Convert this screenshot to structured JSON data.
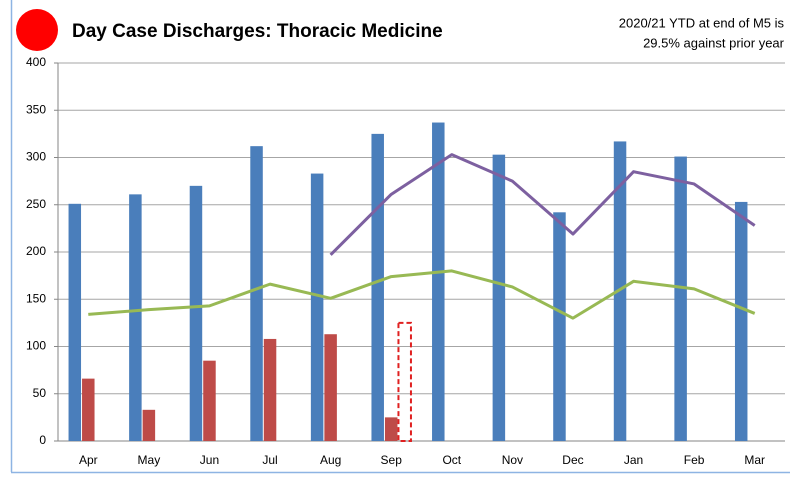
{
  "chart_data": {
    "type": "bar",
    "title": "Day Case Discharges: Thoracic Medicine",
    "annotation": [
      "2020/21 YTD at end of M5 is",
      "29.5% against prior year"
    ],
    "categories": [
      "Apr",
      "May",
      "Jun",
      "Jul",
      "Aug",
      "Sep",
      "Oct",
      "Nov",
      "Dec",
      "Jan",
      "Feb",
      "Mar"
    ],
    "series": [
      {
        "type": "bar",
        "color": "#4a7ebb",
        "values": [
          251,
          261,
          270,
          312,
          283,
          325,
          337,
          303,
          242,
          317,
          301,
          253
        ]
      },
      {
        "type": "bar",
        "color": "#be4b48",
        "values": [
          66,
          33,
          85,
          108,
          113,
          25,
          null,
          null,
          null,
          null,
          null,
          null
        ]
      },
      {
        "type": "bar",
        "color": "#e02020",
        "dashed": true,
        "values": [
          null,
          null,
          null,
          null,
          null,
          125,
          null,
          null,
          null,
          null,
          null,
          null
        ]
      },
      {
        "type": "line",
        "color": "#7d60a0",
        "values": [
          null,
          null,
          null,
          null,
          197,
          261,
          303,
          275,
          219,
          285,
          272,
          228
        ]
      },
      {
        "type": "line",
        "color": "#98b954",
        "values": [
          134,
          139,
          143,
          166,
          151,
          174,
          180,
          163,
          130,
          169,
          161,
          135
        ]
      }
    ],
    "ylim": [
      0,
      400
    ],
    "yticks": [
      0,
      50,
      100,
      150,
      200,
      250,
      300,
      350,
      400
    ],
    "grid": true
  }
}
